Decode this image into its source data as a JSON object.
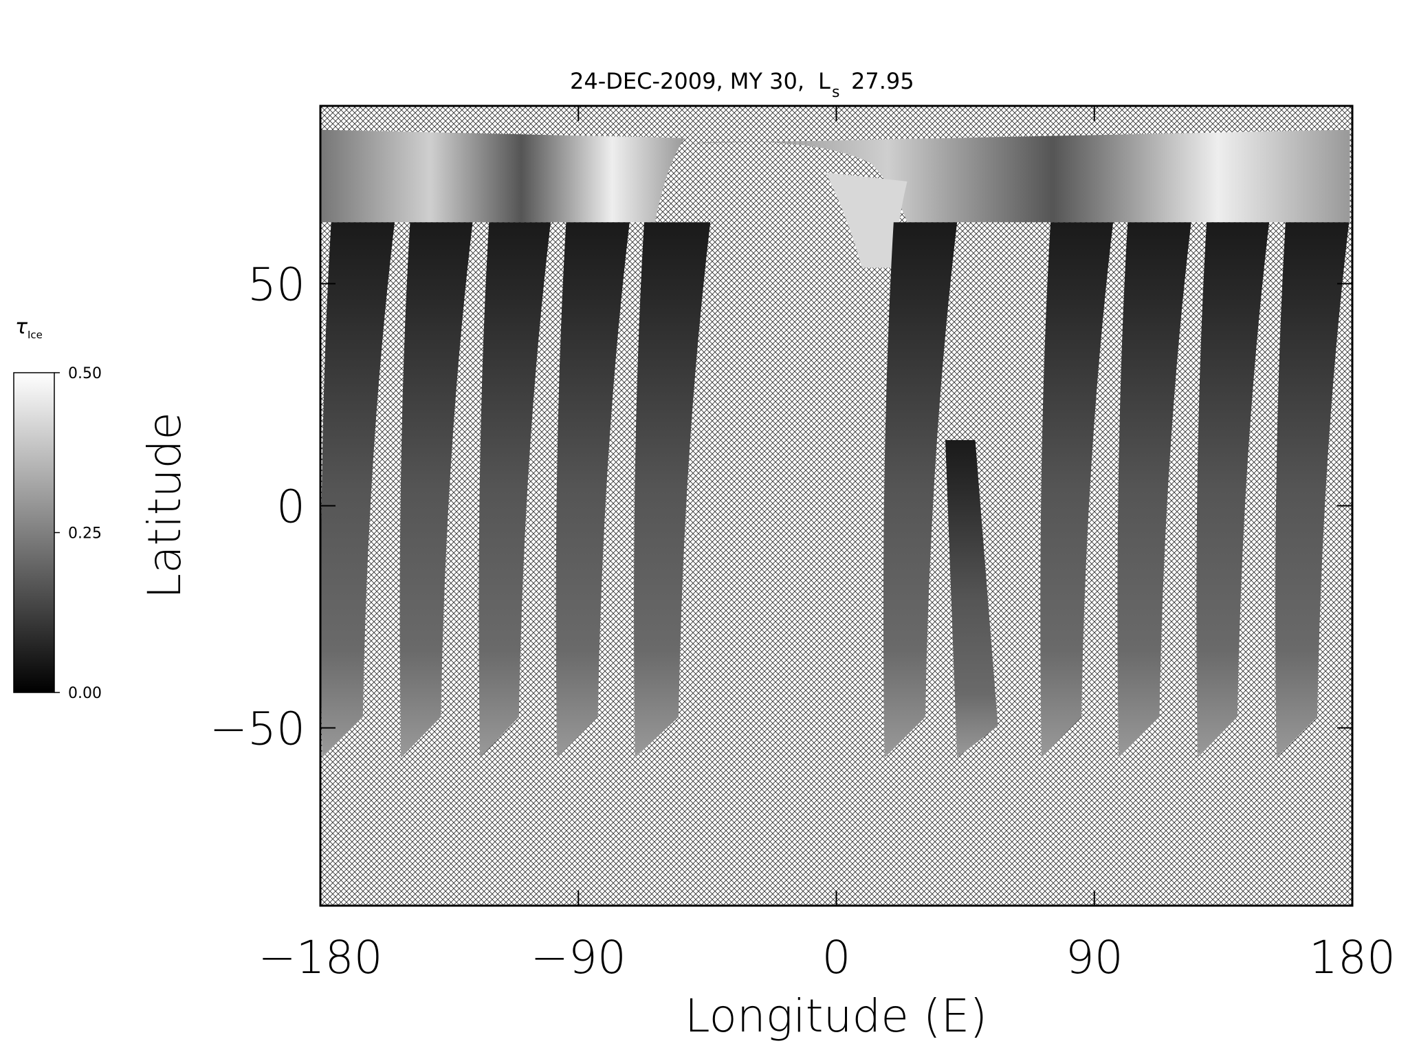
{
  "chart_data": {
    "type": "map",
    "title": "24-DEC-2009, MY 30,",
    "ls_symbol": "L",
    "ls_subscript": "s",
    "ls_value": 27.95,
    "xlabel": "Longitude (E)",
    "ylabel": "Latitude",
    "xlim": [
      -180,
      180
    ],
    "ylim": [
      -90,
      90
    ],
    "xticks": [
      {
        "value": -180,
        "label": "−180"
      },
      {
        "value": -90,
        "label": "−90"
      },
      0,
      90,
      180
    ],
    "yticks": [
      {
        "value": -50,
        "label": "−50"
      },
      0,
      50
    ],
    "colorbar": {
      "label": "τ",
      "label_subscript": "Ice",
      "clim": [
        0,
        0.5
      ],
      "ticks": [
        {
          "value": 0,
          "label": "0.00"
        },
        {
          "value": 0.25,
          "label": "0.25"
        },
        {
          "value": 0.5,
          "label": "0.50"
        }
      ]
    }
  }
}
